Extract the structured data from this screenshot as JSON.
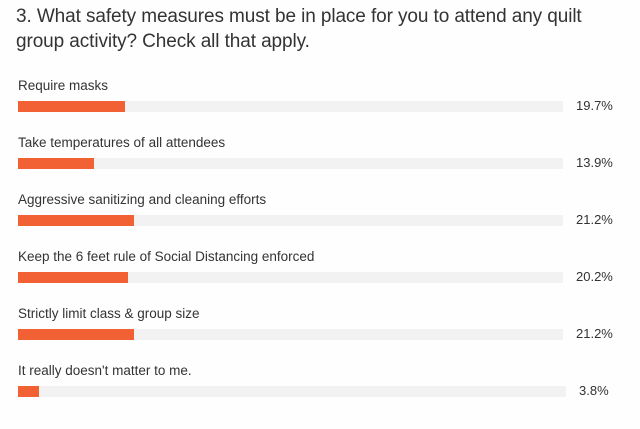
{
  "question": {
    "title": "3. What safety measures must be in place for you to attend any quilt group activity? Check all that apply."
  },
  "colors": {
    "bar": "#f26133",
    "track": "#f2f2f2",
    "text": "#333333"
  },
  "answers": [
    {
      "label": "Require masks",
      "percent_label": "19.7%",
      "percent": 19.7
    },
    {
      "label": "Take temperatures of all attendees",
      "percent_label": "13.9%",
      "percent": 13.9
    },
    {
      "label": "Aggressive sanitizing and cleaning efforts",
      "percent_label": "21.2%",
      "percent": 21.2
    },
    {
      "label": "Keep the 6 feet rule of Social Distancing enforced",
      "percent_label": "20.2%",
      "percent": 20.2
    },
    {
      "label": "Strictly limit class & group size",
      "percent_label": "21.2%",
      "percent": 21.2
    },
    {
      "label": "It really doesn't matter to me.",
      "percent_label": "3.8%",
      "percent": 3.8
    }
  ],
  "chart_data": {
    "type": "bar",
    "orientation": "horizontal",
    "title": "3. What safety measures must be in place for you to attend any quilt group activity? Check all that apply.",
    "categories": [
      "Require masks",
      "Take temperatures of all attendees",
      "Aggressive sanitizing and cleaning efforts",
      "Keep the 6 feet rule of Social Distancing enforced",
      "Strictly limit class & group size",
      "It really doesn't matter to me."
    ],
    "values": [
      19.7,
      13.9,
      21.2,
      20.2,
      21.2,
      3.8
    ],
    "value_labels": [
      "19.7%",
      "13.9%",
      "21.2%",
      "20.2%",
      "21.2%",
      "3.8%"
    ],
    "xlabel": "",
    "ylabel": "",
    "xlim": [
      0,
      100
    ],
    "grid": false,
    "legend": "none",
    "bar_color": "#f26133"
  }
}
